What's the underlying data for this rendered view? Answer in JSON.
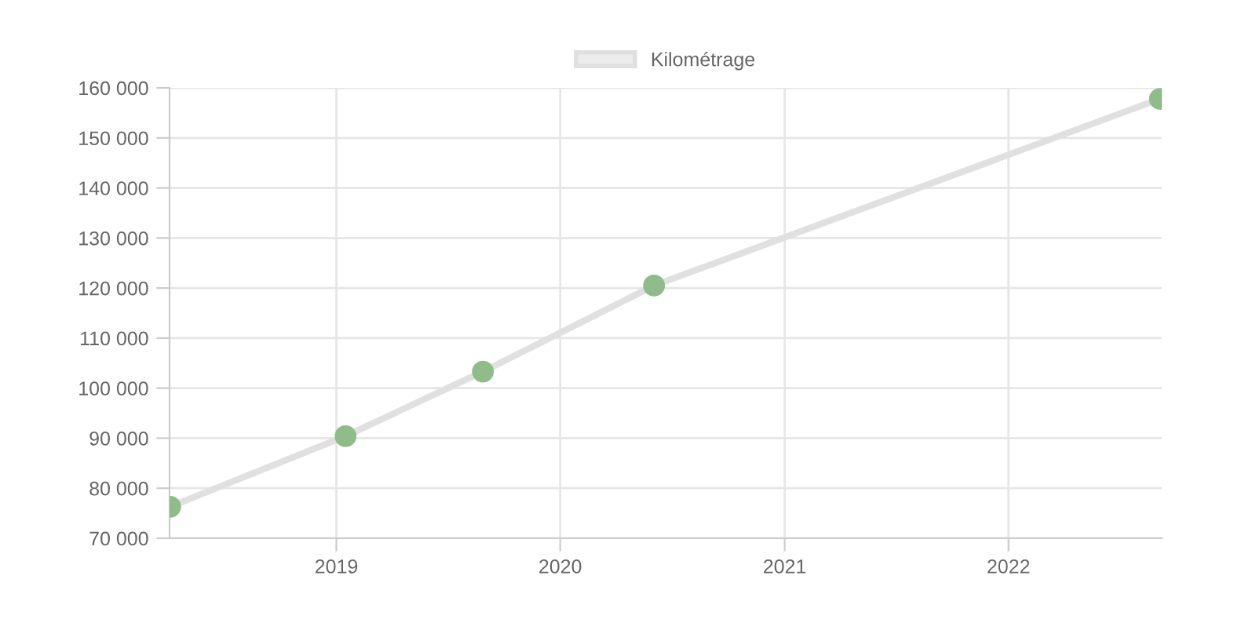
{
  "chart_data": {
    "type": "line",
    "x": [
      "2018-04-05",
      "2019-01-16",
      "2019-08-28",
      "2020-06-02",
      "2022-09-05"
    ],
    "series": [
      {
        "name": "Kilométrage",
        "color": "#e0e0e0",
        "values": [
          76300,
          90400,
          103300,
          120500,
          157800
        ]
      }
    ],
    "marker": "circle",
    "line_style": "solid",
    "grid": true,
    "legend": "top",
    "xlim": [
      "2018-04-04",
      "2022-09-08"
    ],
    "xticks": [
      {
        "value": "2019-01-01",
        "label": "2019"
      },
      {
        "value": "2020-01-01",
        "label": "2020"
      },
      {
        "value": "2021-01-01",
        "label": "2021"
      },
      {
        "value": "2022-01-01",
        "label": "2022"
      }
    ],
    "ylim": [
      70000,
      160000
    ],
    "yticks": [
      {
        "value": 70000,
        "label": "70 000"
      },
      {
        "value": 80000,
        "label": "80 000"
      },
      {
        "value": 90000,
        "label": "90 000"
      },
      {
        "value": 100000,
        "label": "100 000"
      },
      {
        "value": 110000,
        "label": "110 000"
      },
      {
        "value": 120000,
        "label": "120 000"
      },
      {
        "value": 130000,
        "label": "130 000"
      },
      {
        "value": 140000,
        "label": "140 000"
      },
      {
        "value": 150000,
        "label": "150 000"
      },
      {
        "value": 160000,
        "label": "160 000"
      }
    ]
  }
}
